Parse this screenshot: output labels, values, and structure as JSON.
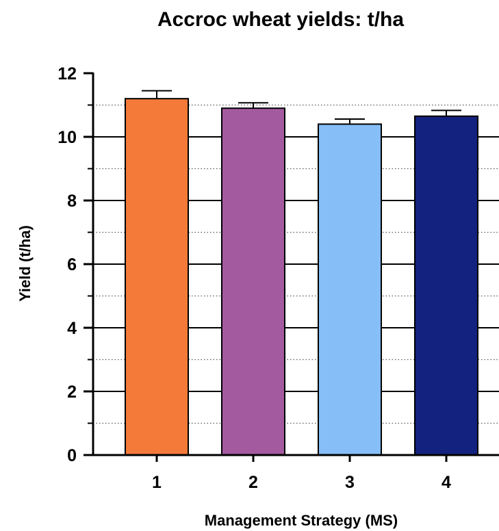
{
  "chart_data": {
    "type": "bar",
    "title": "Accroc wheat yields: t/ha",
    "xlabel": "Management  Strategy (MS)",
    "ylabel": "Yield (t/ha)",
    "categories": [
      "1",
      "2",
      "3",
      "4"
    ],
    "values": [
      11.2,
      10.9,
      10.4,
      10.65
    ],
    "error_upper": [
      0.25,
      0.17,
      0.16,
      0.18
    ],
    "colors": [
      "#F47A3A",
      "#A45A9E",
      "#86BFF7",
      "#13227E"
    ],
    "ylim": [
      0,
      12
    ],
    "yticks": [
      "0",
      "2",
      "4",
      "6",
      "8",
      "10",
      "12"
    ],
    "grid": "major solid, minor dotted",
    "legend": "none"
  }
}
